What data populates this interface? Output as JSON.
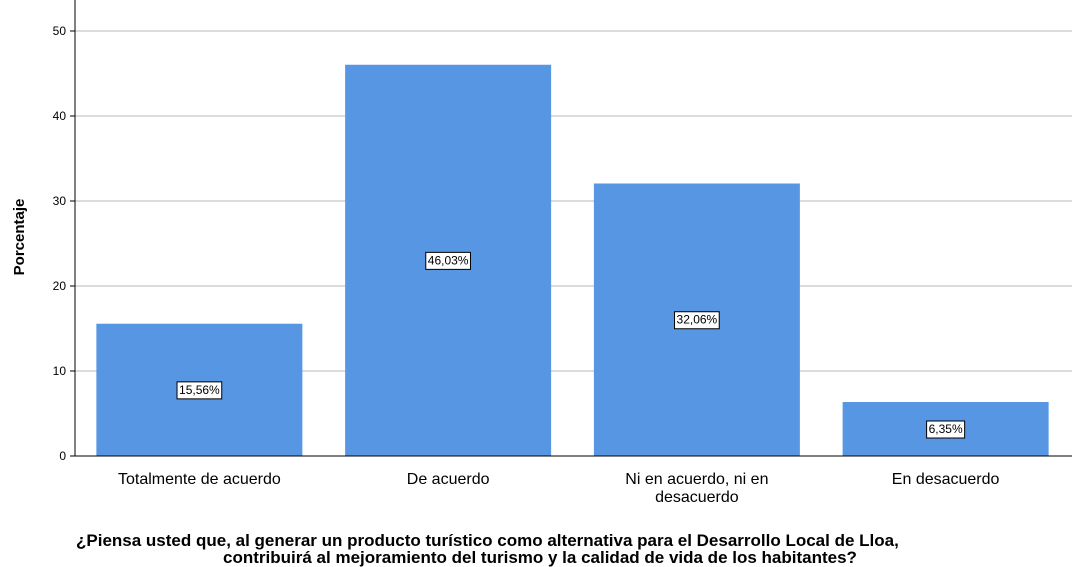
{
  "chart_data": {
    "type": "bar",
    "categories": [
      [
        "Totalmente de acuerdo"
      ],
      [
        "De acuerdo"
      ],
      [
        "Ni en acuerdo, ni en",
        "desacuerdo"
      ],
      [
        "En desacuerdo"
      ]
    ],
    "values": [
      15.56,
      46.03,
      32.06,
      6.35
    ],
    "data_labels": [
      "15,56%",
      "46,03%",
      "32,06%",
      "6,35%"
    ],
    "ylabel": "Porcentaje",
    "xlabel": [
      "¿Piensa usted que, al generar un producto turístico como alternativa para el Desarrollo Local de Lloa,",
      "contribuirá al mejoramiento del turismo y la calidad de vida de los habitantes?"
    ],
    "yticks": [
      "0",
      "10",
      "20",
      "30",
      "40",
      "50"
    ],
    "ylim": [
      0,
      52
    ],
    "grid": true,
    "bar_color": "#5696e3"
  }
}
